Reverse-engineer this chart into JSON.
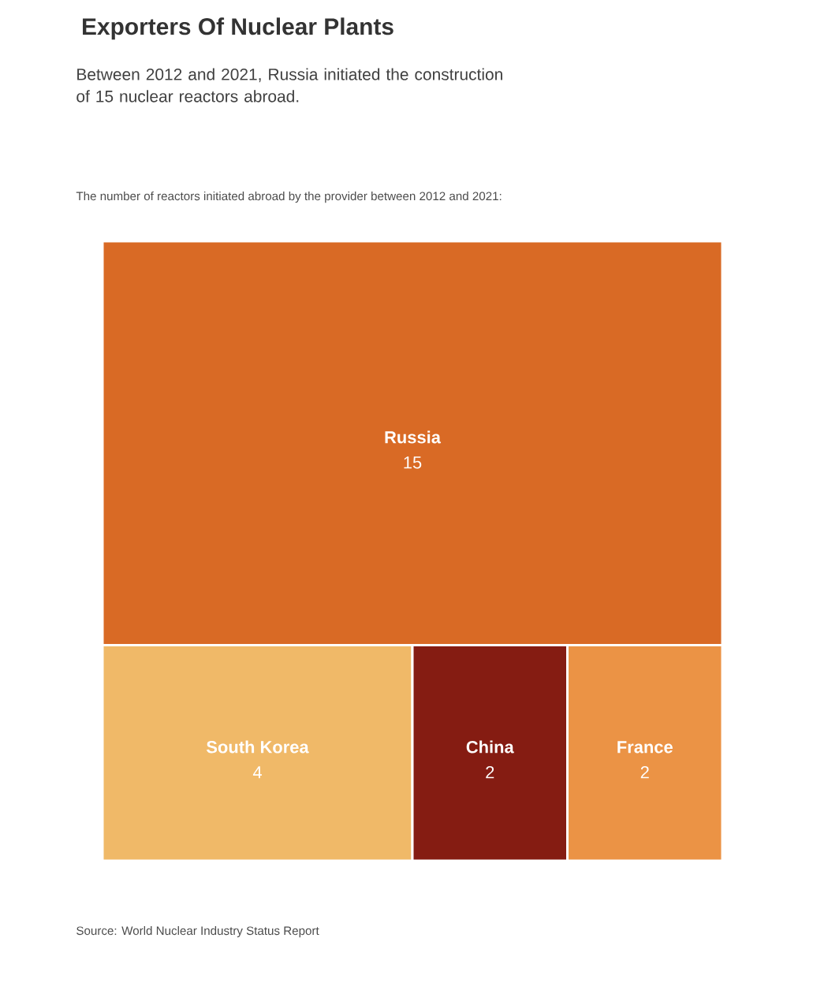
{
  "chart_data": {
    "type": "other",
    "title": "Exporters Of Nuclear Plants",
    "subtitle": "Between 2012 and 2021, Russia initiated the construction of 15 nuclear reactors abroad.",
    "categories": [
      "Russia",
      "South Korea",
      "China",
      "France"
    ],
    "values": [
      15,
      4,
      2,
      2
    ],
    "data_labels": true,
    "colors": [
      "#d96a25",
      "#f0b968",
      "#851c12",
      "#eb9345"
    ],
    "annotations": [
      "The number of reactors initiated abroad by the provider between 2012 and 2021:",
      "Source: World Nuclear Industry Status Report"
    ]
  }
}
